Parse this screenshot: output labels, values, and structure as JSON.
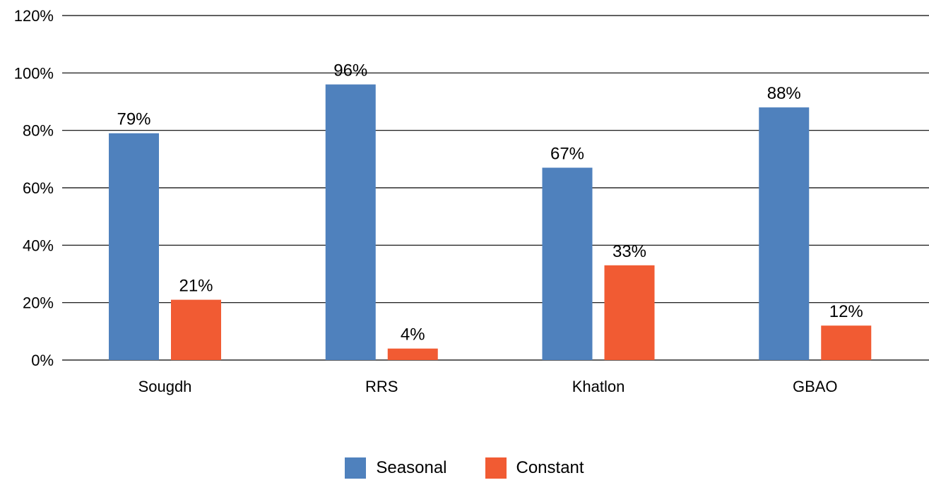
{
  "chart_data": {
    "type": "bar",
    "categories": [
      "Sougdh",
      "RRS",
      "Khatlon",
      "GBAO"
    ],
    "series": [
      {
        "name": "Seasonal",
        "values": [
          79,
          96,
          67,
          88
        ],
        "labels": [
          "79%",
          "96%",
          "67%",
          "88%"
        ],
        "color": "#4f81bd"
      },
      {
        "name": "Constant",
        "values": [
          21,
          4,
          33,
          12
        ],
        "labels": [
          "21%",
          "4%",
          "33%",
          "12%"
        ],
        "color": "#f15b33"
      }
    ],
    "yaxis": {
      "ticks": [
        0,
        20,
        40,
        60,
        80,
        100,
        120
      ],
      "tick_labels": [
        "0%",
        "20%",
        "40%",
        "60%",
        "80%",
        "100%",
        "120%"
      ],
      "ylim": [
        0,
        120
      ]
    },
    "grid": true,
    "legend_position": "bottom-center",
    "title": "",
    "xlabel": "",
    "ylabel": ""
  }
}
